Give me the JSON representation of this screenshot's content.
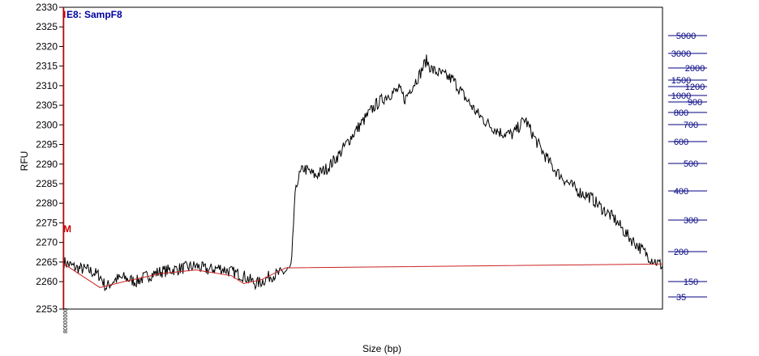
{
  "chart_data": {
    "type": "line",
    "title": "E8: SampF8",
    "title_prefix_overlap": "I",
    "marker_label": "M",
    "xlabel": "Size (bp)",
    "ylabel": "RFU",
    "y_ticks": [
      2253,
      2260,
      2265,
      2270,
      2275,
      2280,
      2285,
      2290,
      2295,
      2300,
      2305,
      2310,
      2315,
      2320,
      2325,
      2330
    ],
    "ylim": [
      2253,
      2330
    ],
    "size_standard_ticks": [
      "5000",
      "3000",
      "2000",
      "1500",
      "1200",
      "1000",
      "900",
      "800",
      "700",
      "600",
      "500",
      "400",
      "300",
      "200",
      "150",
      "35"
    ],
    "x_corner_label": "80000000",
    "series": [
      {
        "color": "#000000",
        "points": [
          [
            0.0,
            2265.0
          ],
          [
            0.02,
            2263.5
          ],
          [
            0.04,
            2263.0
          ],
          [
            0.06,
            2261.5
          ],
          [
            0.07,
            2258.5
          ],
          [
            0.085,
            2260.5
          ],
          [
            0.1,
            2261.0
          ],
          [
            0.12,
            2260.0
          ],
          [
            0.14,
            2261.5
          ],
          [
            0.16,
            2262.5
          ],
          [
            0.18,
            2263.0
          ],
          [
            0.2,
            2263.5
          ],
          [
            0.22,
            2264.0
          ],
          [
            0.24,
            2263.0
          ],
          [
            0.26,
            2263.5
          ],
          [
            0.28,
            2262.5
          ],
          [
            0.3,
            2261.5
          ],
          [
            0.32,
            2259.5
          ],
          [
            0.33,
            2260.0
          ],
          [
            0.345,
            2261.5
          ],
          [
            0.36,
            2262.0
          ],
          [
            0.375,
            2263.0
          ],
          [
            0.38,
            2263.5
          ],
          [
            0.385,
            2280.0
          ],
          [
            0.39,
            2286.0
          ],
          [
            0.4,
            2289.0
          ],
          [
            0.42,
            2287.0
          ],
          [
            0.44,
            2289.0
          ],
          [
            0.46,
            2292.5
          ],
          [
            0.48,
            2297.0
          ],
          [
            0.5,
            2301.0
          ],
          [
            0.52,
            2305.0
          ],
          [
            0.54,
            2307.5
          ],
          [
            0.56,
            2309.0
          ],
          [
            0.57,
            2306.5
          ],
          [
            0.58,
            2309.5
          ],
          [
            0.595,
            2313.0
          ],
          [
            0.605,
            2316.5
          ],
          [
            0.615,
            2314.0
          ],
          [
            0.63,
            2313.0
          ],
          [
            0.65,
            2311.5
          ],
          [
            0.67,
            2307.0
          ],
          [
            0.69,
            2303.0
          ],
          [
            0.71,
            2300.0
          ],
          [
            0.73,
            2298.0
          ],
          [
            0.75,
            2297.5
          ],
          [
            0.76,
            2299.5
          ],
          [
            0.77,
            2301.5
          ],
          [
            0.785,
            2297.0
          ],
          [
            0.8,
            2293.0
          ],
          [
            0.82,
            2288.5
          ],
          [
            0.84,
            2285.5
          ],
          [
            0.86,
            2283.0
          ],
          [
            0.88,
            2281.5
          ],
          [
            0.9,
            2278.5
          ],
          [
            0.92,
            2276.0
          ],
          [
            0.94,
            2272.0
          ],
          [
            0.96,
            2269.0
          ],
          [
            0.98,
            2266.0
          ],
          [
            0.99,
            2265.0
          ],
          [
            1.0,
            2264.0
          ]
        ]
      },
      {
        "color": "#cc2222",
        "points": [
          [
            0.0,
            2264.5
          ],
          [
            0.06,
            2258.5
          ],
          [
            0.1,
            2260.0
          ],
          [
            0.16,
            2262.0
          ],
          [
            0.22,
            2263.0
          ],
          [
            0.28,
            2261.5
          ],
          [
            0.3,
            2259.5
          ],
          [
            0.33,
            2260.5
          ],
          [
            0.37,
            2263.5
          ],
          [
            1.0,
            2264.5
          ]
        ]
      }
    ]
  }
}
